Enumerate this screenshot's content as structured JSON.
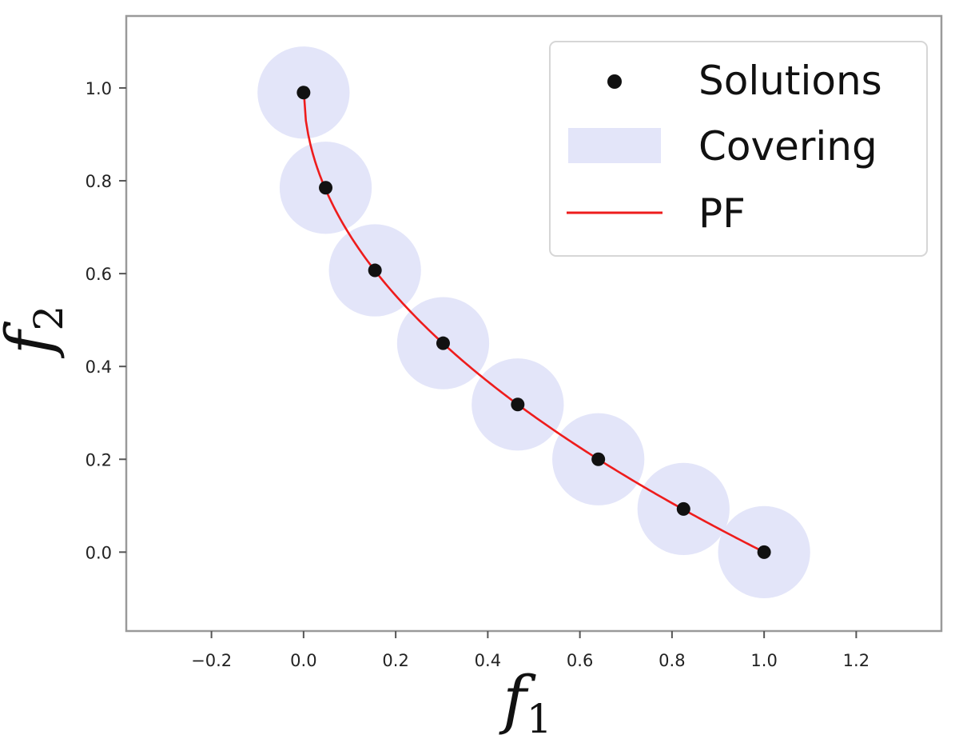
{
  "chart_data": {
    "type": "scatter",
    "title": "",
    "xlabel": {
      "base": "f",
      "sub": "1"
    },
    "ylabel": {
      "base": "f",
      "sub": "2"
    },
    "xlim": [
      -0.385,
      1.385
    ],
    "ylim": [
      -0.17,
      1.155
    ],
    "xticks": [
      -0.2,
      0.0,
      0.2,
      0.4,
      0.6,
      0.8,
      1.0,
      1.2
    ],
    "xtick_labels": [
      "−0.2",
      "0.0",
      "0.2",
      "0.4",
      "0.6",
      "0.8",
      "1.0",
      "1.2"
    ],
    "yticks": [
      0.0,
      0.2,
      0.4,
      0.6,
      0.8,
      1.0
    ],
    "ytick_labels": [
      "0.0",
      "0.2",
      "0.4",
      "0.6",
      "0.8",
      "1.0"
    ],
    "grid": false,
    "legend_position": "top-right",
    "series": [
      {
        "name": "Solutions",
        "kind": "scatter",
        "color": "#111111",
        "x": [
          0.0,
          0.048,
          0.155,
          0.303,
          0.465,
          0.64,
          0.825,
          1.0
        ],
        "y": [
          0.99,
          0.785,
          0.607,
          0.45,
          0.318,
          0.2,
          0.093,
          0.0
        ]
      },
      {
        "name": "Covering",
        "kind": "circles",
        "color": "#e3e5f9",
        "radius": 0.1,
        "x": [
          0.0,
          0.048,
          0.155,
          0.303,
          0.465,
          0.64,
          0.825,
          1.0
        ],
        "y": [
          0.99,
          0.785,
          0.607,
          0.45,
          0.318,
          0.2,
          0.093,
          0.0
        ]
      },
      {
        "name": "PF",
        "kind": "line",
        "color": "#ee1c1c",
        "formula": "f2 = 1 - sqrt(f1)",
        "x_range": [
          0.0,
          1.0
        ]
      }
    ]
  }
}
